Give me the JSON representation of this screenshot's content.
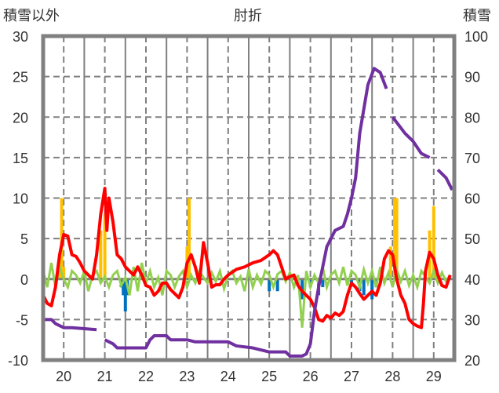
{
  "chart_data": {
    "type": "line",
    "title": "肘折",
    "ylabel_left": "積雪以外",
    "ylabel_right": "積雪",
    "ylim_left": [
      -10,
      30
    ],
    "ylim_right": [
      20,
      100
    ],
    "xlim": [
      19.5,
      29.5
    ],
    "yticks_left": [
      30,
      25,
      20,
      15,
      10,
      5,
      0,
      -5,
      -10
    ],
    "yticks_right": [
      100,
      90,
      80,
      70,
      60,
      50,
      40,
      30,
      20
    ],
    "xticks": [
      20,
      21,
      22,
      23,
      24,
      25,
      26,
      27,
      28,
      29
    ],
    "grid": "dashed",
    "colors": {
      "temperature": "#ff0000",
      "snow_depth": "#7030a0",
      "change": "#92d050",
      "snowfall": "#ffc000",
      "melt": "#0070c0",
      "frame": "#808080"
    },
    "series": [
      {
        "name": "temperature",
        "axis": "left",
        "points": [
          [
            19.5,
            -2
          ],
          [
            19.6,
            -3
          ],
          [
            19.7,
            -3.3
          ],
          [
            19.8,
            -1
          ],
          [
            19.9,
            3
          ],
          [
            20.0,
            5.5
          ],
          [
            20.1,
            5.3
          ],
          [
            20.2,
            3
          ],
          [
            20.3,
            2.8
          ],
          [
            20.4,
            2
          ],
          [
            20.5,
            1
          ],
          [
            20.6,
            0.5
          ],
          [
            20.7,
            0
          ],
          [
            20.8,
            3
          ],
          [
            20.9,
            8
          ],
          [
            21.0,
            11.2
          ],
          [
            21.05,
            6
          ],
          [
            21.1,
            10
          ],
          [
            21.2,
            7
          ],
          [
            21.3,
            3
          ],
          [
            21.4,
            2.5
          ],
          [
            21.5,
            1.5
          ],
          [
            21.6,
            1
          ],
          [
            21.7,
            0.5
          ],
          [
            21.8,
            1.5
          ],
          [
            21.9,
            0.5
          ],
          [
            22.0,
            -0.8
          ],
          [
            22.1,
            -1
          ],
          [
            22.2,
            -2
          ],
          [
            22.3,
            -1.5
          ],
          [
            22.4,
            -0.5
          ],
          [
            22.5,
            -0.5
          ],
          [
            22.6,
            -1.3
          ],
          [
            22.8,
            -2.3
          ],
          [
            22.9,
            -1
          ],
          [
            23.0,
            2
          ],
          [
            23.1,
            3
          ],
          [
            23.2,
            1.5
          ],
          [
            23.3,
            -0.5
          ],
          [
            23.4,
            4.5
          ],
          [
            23.5,
            2
          ],
          [
            23.6,
            -1
          ],
          [
            23.7,
            -0.7
          ],
          [
            23.8,
            -0.7
          ],
          [
            23.9,
            0
          ],
          [
            24.0,
            0.5
          ],
          [
            24.2,
            1.2
          ],
          [
            24.4,
            1.5
          ],
          [
            24.6,
            2
          ],
          [
            24.8,
            2.3
          ],
          [
            25.0,
            3
          ],
          [
            25.1,
            3.5
          ],
          [
            25.2,
            3
          ],
          [
            25.3,
            1.5
          ],
          [
            25.4,
            0
          ],
          [
            25.5,
            0.3
          ],
          [
            25.6,
            0.5
          ],
          [
            25.7,
            -0.8
          ],
          [
            25.8,
            -1.5
          ],
          [
            25.9,
            -2
          ],
          [
            26.0,
            -2.5
          ],
          [
            26.1,
            -3.5
          ],
          [
            26.2,
            -5
          ],
          [
            26.3,
            -5.2
          ],
          [
            26.4,
            -4.5
          ],
          [
            26.5,
            -4.8
          ],
          [
            26.6,
            -4.2
          ],
          [
            26.7,
            -4.5
          ],
          [
            26.8,
            -4
          ],
          [
            26.9,
            -2
          ],
          [
            27.0,
            -0.5
          ],
          [
            27.1,
            -1
          ],
          [
            27.2,
            -1.8
          ],
          [
            27.3,
            -2.5
          ],
          [
            27.4,
            -2
          ],
          [
            27.5,
            -1.5
          ],
          [
            27.6,
            -2
          ],
          [
            27.7,
            -0.5
          ],
          [
            27.8,
            2.5
          ],
          [
            27.9,
            3.5
          ],
          [
            28.0,
            3
          ],
          [
            28.1,
            0
          ],
          [
            28.2,
            -2
          ],
          [
            28.3,
            -3
          ],
          [
            28.4,
            -5
          ],
          [
            28.5,
            -5.5
          ],
          [
            28.6,
            -5.8
          ],
          [
            28.7,
            -6
          ],
          [
            28.75,
            -3
          ],
          [
            28.8,
            1
          ],
          [
            28.9,
            3.3
          ],
          [
            29.0,
            2.5
          ],
          [
            29.1,
            0.5
          ],
          [
            29.2,
            -0.8
          ],
          [
            29.3,
            -1
          ],
          [
            29.4,
            0.5
          ]
        ]
      },
      {
        "name": "snow_depth",
        "axis": "right",
        "segments": [
          [
            [
              19.5,
              30
            ],
            [
              19.7,
              30
            ],
            [
              19.8,
              29
            ],
            [
              20.0,
              28
            ],
            [
              20.2,
              28
            ],
            [
              20.8,
              27.5
            ]
          ],
          [
            [
              21.0,
              25
            ],
            [
              21.2,
              24
            ],
            [
              21.3,
              23
            ],
            [
              22.0,
              23
            ],
            [
              22.1,
              25
            ],
            [
              22.2,
              26
            ],
            [
              22.5,
              26
            ],
            [
              22.6,
              25
            ],
            [
              23.0,
              25
            ],
            [
              23.2,
              24.5
            ],
            [
              24.0,
              24.5
            ],
            [
              24.2,
              23.5
            ],
            [
              24.6,
              23
            ],
            [
              25.0,
              22
            ],
            [
              25.4,
              22
            ],
            [
              25.5,
              21
            ],
            [
              25.8,
              21
            ],
            [
              25.9,
              21.5
            ],
            [
              26.0,
              24
            ],
            [
              26.1,
              32
            ],
            [
              26.2,
              38
            ],
            [
              26.3,
              43
            ],
            [
              26.4,
              48
            ],
            [
              26.6,
              52
            ],
            [
              26.8,
              53
            ],
            [
              26.9,
              56
            ],
            [
              27.0,
              60
            ],
            [
              27.1,
              65
            ],
            [
              27.2,
              76
            ],
            [
              27.3,
              82
            ],
            [
              27.4,
              88
            ],
            [
              27.55,
              92
            ],
            [
              27.7,
              91
            ],
            [
              27.85,
              87
            ]
          ],
          [
            [
              28.0,
              80
            ],
            [
              28.3,
              76
            ],
            [
              28.5,
              74
            ],
            [
              28.7,
              71
            ],
            [
              28.9,
              70
            ]
          ],
          [
            [
              29.1,
              67
            ],
            [
              29.3,
              65
            ],
            [
              29.45,
              62
            ]
          ]
        ]
      },
      {
        "name": "change",
        "axis": "left",
        "start": 19.5,
        "step": 0.1,
        "values": [
          1,
          -1,
          2,
          -1,
          1.5,
          0,
          -1,
          1,
          0.5,
          -0.5,
          1,
          -1.5,
          0.5,
          1,
          -0.5,
          0.3,
          -1,
          0.5,
          1,
          -0.8,
          0.2,
          -2,
          1.5,
          -1.5,
          2,
          -0.5,
          1,
          -1,
          0.2,
          -2,
          1,
          0.5,
          -1,
          0.3,
          1,
          -1,
          0.5,
          -0.5,
          1,
          0.2,
          -0.5,
          0.8,
          -0.3,
          1,
          -1.2,
          0.5,
          1,
          -0.5,
          0.3,
          -1.5,
          1.2,
          -1,
          0.5,
          -0.6,
          1,
          0.5,
          -1,
          0.6,
          1,
          -0.3,
          0.8,
          -1,
          0.5,
          -6,
          1,
          -1,
          0.5,
          -0.5,
          1.5,
          -1,
          0.5,
          1,
          -0.5,
          1.5,
          -0.8,
          1,
          0.5,
          -1,
          1.2,
          -0.5,
          1,
          -1,
          1.5,
          -0.5,
          0.8,
          -1,
          1.2,
          -0.3,
          1,
          -0.8,
          0.5,
          -1,
          1,
          0.3,
          -0.5,
          1,
          -0.5,
          0.8,
          -0.3,
          0.5
        ]
      },
      {
        "name": "snowfall",
        "axis": "left",
        "bars": [
          [
            19.9,
            2.5
          ],
          [
            19.95,
            10
          ],
          [
            20.0,
            1.5
          ],
          [
            20.9,
            6
          ],
          [
            21.0,
            8
          ],
          [
            23.0,
            4
          ],
          [
            23.05,
            10
          ],
          [
            27.95,
            4
          ],
          [
            28.05,
            10
          ],
          [
            28.1,
            10
          ],
          [
            28.9,
            6
          ],
          [
            29.0,
            9
          ]
        ]
      },
      {
        "name": "melt",
        "axis": "left",
        "bars": [
          [
            21.4,
            -1
          ],
          [
            21.45,
            -2
          ],
          [
            21.5,
            -4
          ],
          [
            21.55,
            -2
          ],
          [
            25.0,
            -1.5
          ],
          [
            25.2,
            -1.5
          ],
          [
            25.8,
            -2.5
          ],
          [
            26.0,
            -1
          ],
          [
            26.2,
            -2
          ],
          [
            26.3,
            -1
          ],
          [
            27.0,
            -0.5
          ],
          [
            27.2,
            -1.5
          ],
          [
            27.3,
            -2
          ],
          [
            27.5,
            -2.5
          ],
          [
            27.6,
            -1
          ]
        ]
      }
    ]
  }
}
